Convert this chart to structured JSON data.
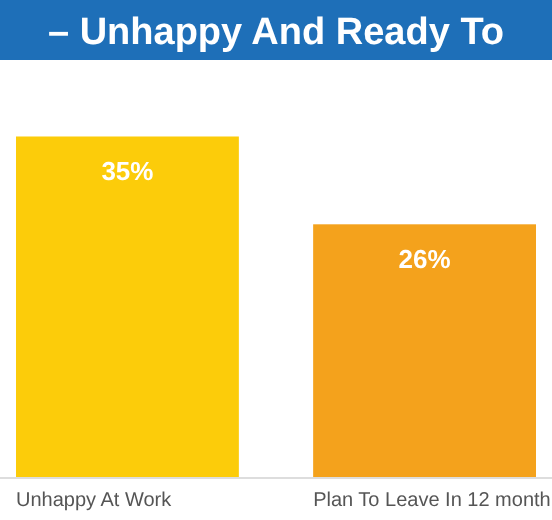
{
  "chart_data": {
    "type": "bar",
    "title": "– Unhappy And Ready To",
    "categories": [
      "Unhappy At Work",
      "Plan To Leave In 12 month"
    ],
    "values": [
      35,
      26
    ],
    "colors": [
      "#fccc0a",
      "#f4a21c"
    ],
    "value_labels": [
      "35%",
      "26%"
    ]
  }
}
